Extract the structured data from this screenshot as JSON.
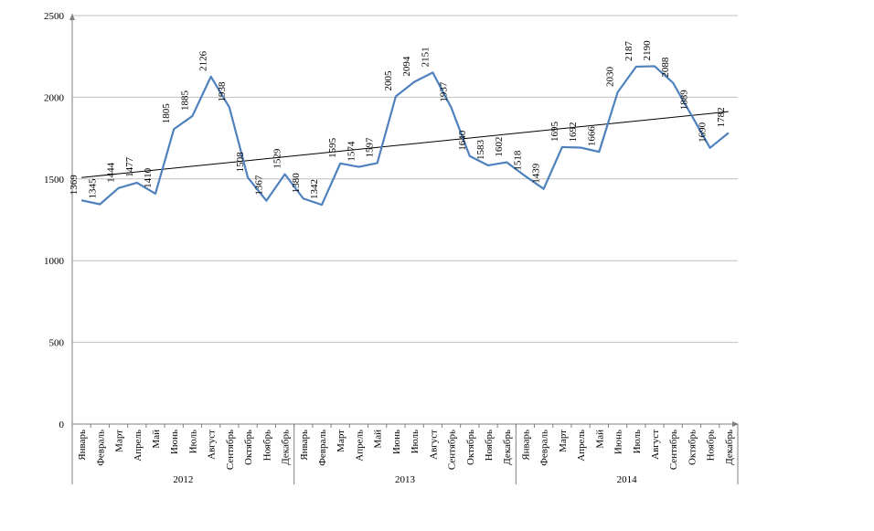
{
  "chart_data": {
    "type": "line",
    "title": "",
    "xlabel": "",
    "ylabel": "",
    "ylim": [
      0,
      2500
    ],
    "yticks": [
      0,
      500,
      1000,
      1500,
      2000,
      2500
    ],
    "grid": true,
    "legend": "none",
    "years": [
      {
        "label": "2012",
        "months": [
          "Январь",
          "Февраль",
          "Март",
          "Апрель",
          "Май",
          "Июнь",
          "Июль",
          "Август",
          "Сентябрь",
          "Октябрь",
          "Ноябрь",
          "Декабрь"
        ]
      },
      {
        "label": "2013",
        "months": [
          "Январь",
          "Февраль",
          "Март",
          "Апрель",
          "Май",
          "Июнь",
          "Июль",
          "Август",
          "Сентябрь",
          "Октябрь",
          "Ноябрь",
          "Декабрь"
        ]
      },
      {
        "label": "2014",
        "months": [
          "Январь",
          "Февраль",
          "Март",
          "Апрель",
          "Май",
          "Июнь",
          "Июль",
          "Август",
          "Сентябрь",
          "Октябрь",
          "Ноябрь",
          "Декабрь"
        ]
      }
    ],
    "series": [
      {
        "values": [
          1369,
          1345,
          1444,
          1477,
          1410,
          1805,
          1885,
          2126,
          1938,
          1508,
          1367,
          1529,
          1380,
          1342,
          1595,
          1574,
          1597,
          2005,
          2094,
          2151,
          1937,
          1640,
          1583,
          1602,
          1518,
          1439,
          1695,
          1692,
          1666,
          2030,
          2187,
          2190,
          2088,
          1889,
          1690,
          1782
        ],
        "color": "#4f81bd"
      }
    ],
    "trendline": {
      "type": "linear",
      "color": "#000000"
    }
  }
}
